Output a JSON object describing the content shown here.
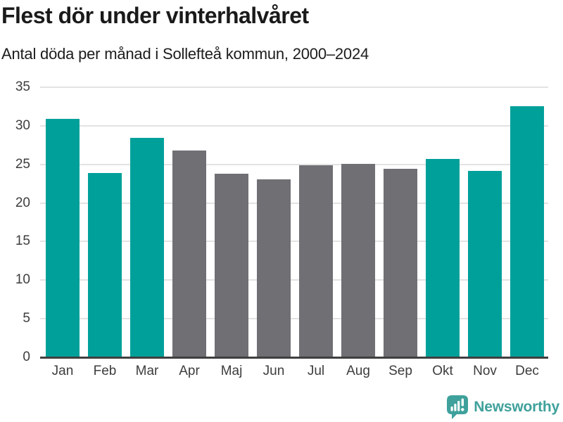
{
  "chart_data": {
    "type": "bar",
    "title": "Flest dör under vinterhalvåret",
    "subtitle": "Antal döda per månad i Sollefteå kommun, 2000–2024",
    "categories": [
      "Jan",
      "Feb",
      "Mar",
      "Apr",
      "Maj",
      "Jun",
      "Jul",
      "Aug",
      "Sep",
      "Okt",
      "Nov",
      "Dec"
    ],
    "values": [
      30.9,
      23.9,
      28.4,
      26.8,
      23.8,
      23.1,
      24.9,
      25.1,
      24.4,
      25.7,
      24.2,
      32.5
    ],
    "highlighted_months": [
      "Jan",
      "Feb",
      "Mar",
      "Okt",
      "Nov",
      "Dec"
    ],
    "xlabel": "",
    "ylabel": "",
    "ylim": [
      0,
      35
    ],
    "yticks": [
      0,
      5,
      10,
      15,
      20,
      25,
      30,
      35
    ],
    "grid": true,
    "legend": "none",
    "colors": {
      "highlight": "#00a09a",
      "muted": "#6f6f74",
      "gridline": "#e3e3e3",
      "axis": "#3f3f3f"
    }
  },
  "footer": {
    "brand": "Newsworthy",
    "brand_color": "#3fa19b",
    "logo_icon": "newsworthy-speech-bubble-bar-chart-icon"
  }
}
